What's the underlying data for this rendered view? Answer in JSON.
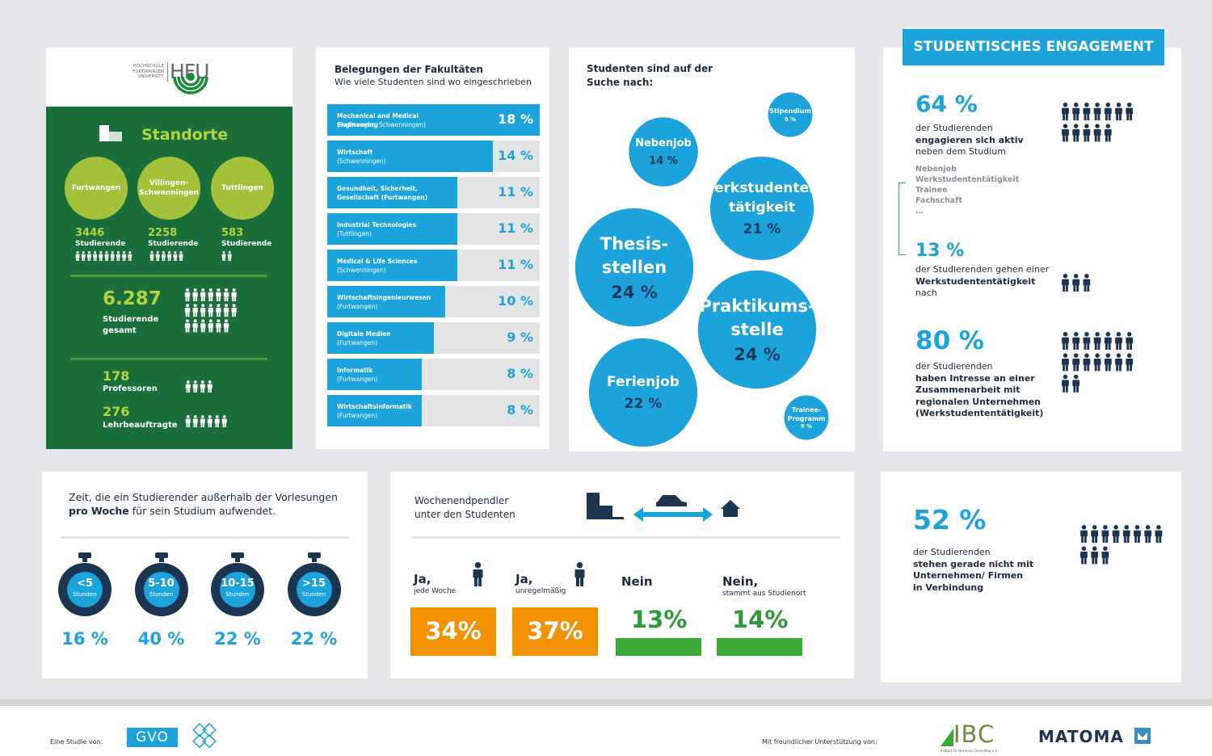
{
  "logo": {
    "small": [
      "HOCHSCHULE",
      "FURTWANGEN",
      "UNIVERSITY"
    ],
    "brand": "HFU"
  },
  "standorte": {
    "title": "Standorte",
    "sites": [
      {
        "name": "Furtwangen",
        "count": 3446,
        "label": "Studierende"
      },
      {
        "name": "Villingen-Schwenningen",
        "count": 2258,
        "label": "Studierende"
      },
      {
        "name": "Tuttlingen",
        "count": 583,
        "label": "Studierende"
      }
    ],
    "total": {
      "value": "6.287",
      "label": "Studierende gesamt"
    },
    "professors": {
      "value": 178,
      "label": "Professoren"
    },
    "lecturers": {
      "value": 276,
      "label": "Lehrbeauftragte"
    }
  },
  "faculties": {
    "title": "Belegungen der Fakultäten",
    "subtitle": "Wie viele Studenten sind wo eingeschrieben",
    "items": [
      {
        "name": "Mechanical and Medical Engineering",
        "location": "(Furtwangen, Schwenningen)",
        "value": 18,
        "label": "18 %"
      },
      {
        "name": "Wirtschaft",
        "location": "(Schwenningen)",
        "value": 14,
        "label": "14 %"
      },
      {
        "name": "Gesundheit, Sicherheit, Gesellschaft (Furtwangen)",
        "value": 11,
        "label": "11 %"
      },
      {
        "name": "Industrial Technologies",
        "location": "(Tuttlingen)",
        "value": 11,
        "label": "11 %"
      },
      {
        "name": "Medical & Life Sciences",
        "location": "(Schwenningen)",
        "value": 11,
        "label": "11 %"
      },
      {
        "name": "Wirtschaftsingenieurwesen",
        "location": "(Furtwangen)",
        "value": 10,
        "label": "10 %"
      },
      {
        "name": "Digitale Medien",
        "location": "(Furtwangen)",
        "value": 9,
        "label": "9 %"
      },
      {
        "name": "Informatik",
        "location": "(Furtwangen)",
        "value": 8,
        "label": "8 %"
      },
      {
        "name": "Wirtschaftsinformatik",
        "location": "(Furtwangen)",
        "value": 8,
        "label": "8 %"
      }
    ]
  },
  "search": {
    "title": "Studenten sind auf der\nSuche nach:",
    "items": [
      {
        "name": "Stipendium",
        "value": 9,
        "label": "9 %"
      },
      {
        "name": "Nebenjob",
        "value": 14,
        "label": "14 %"
      },
      {
        "name": "Werkstudenten-\ntätigkeit",
        "value": 21,
        "label": "21 %"
      },
      {
        "name": "Thesis-\nstellen",
        "value": 24,
        "label": "24 %"
      },
      {
        "name": "Praktikums-\nstelle",
        "value": 24,
        "label": "24 %"
      },
      {
        "name": "Ferienjob",
        "value": 22,
        "label": "22 %"
      },
      {
        "name": "Trainee-\nProgramm",
        "value": 9,
        "label": "9 %"
      }
    ]
  },
  "engagement": {
    "title": "STUDENTISCHES ENGAGEMENT",
    "stats": [
      {
        "value": "64 %",
        "lines": [
          {
            "text": "der Studierenden",
            "bold": false
          },
          {
            "text": "engagieren sich aktiv",
            "bold": true
          },
          {
            "text": "neben dem Studium",
            "bold": false
          }
        ]
      },
      {
        "value": "13 %",
        "lines": [
          {
            "text": "der Studierenden gehen einer",
            "bold": false
          },
          {
            "text": "Werkstudententätigkeit",
            "bold": true
          },
          {
            "text": "nach",
            "bold": false
          }
        ]
      },
      {
        "value": "80 %",
        "lines": [
          {
            "text": "der Studierenden",
            "bold": false
          },
          {
            "text": "haben Intresse an einer",
            "bold": true
          },
          {
            "text": "Zusammenarbeit mit",
            "bold": true
          },
          {
            "text": "regionalen Unternehmen",
            "bold": true
          },
          {
            "text": "(Werkstudententätigkeit)",
            "bold": true
          }
        ]
      }
    ],
    "list": [
      "Nebenjob",
      "Werkstudententätigkeit",
      "Trainee",
      "Fachschaft",
      "…"
    ]
  },
  "time": {
    "title": [
      {
        "text": "Zeit, die ein Studierender außerhalb der Vorlesungen ",
        "bold": false
      },
      {
        "text": "pro Woche",
        "bold": true
      },
      {
        "text": " für sein Studium aufwendet.",
        "bold": false
      }
    ],
    "items": [
      {
        "range": "<5",
        "unit": "Stunden",
        "value": "16 %"
      },
      {
        "range": "5-10",
        "unit": "Stunden",
        "value": "40 %"
      },
      {
        "range": "10-15",
        "unit": "Stunden",
        "value": "22 %"
      },
      {
        "range": ">15",
        "unit": "Stunden",
        "value": "22 %"
      }
    ]
  },
  "commuters": {
    "title": "Wochenendpendler\nunter den Studenten",
    "items": [
      {
        "answer": "Ja,",
        "detail": "jede Woche",
        "value": "34%"
      },
      {
        "answer": "Ja,",
        "detail": "unregelmäßig",
        "value": "37%"
      },
      {
        "answer": "Nein",
        "value": "13%"
      },
      {
        "answer": "Nein,",
        "detail": "stammt aus Studienort",
        "value": "14%"
      }
    ]
  },
  "contact": {
    "value": "52 %",
    "lines": [
      {
        "text": "der Studierenden",
        "bold": false
      },
      {
        "text": "stehen gerade nicht mit",
        "bold": true
      },
      {
        "text": "Unternehmen/ Firmen",
        "bold": true
      },
      {
        "text": "in Verbindung",
        "bold": true
      }
    ]
  },
  "footer": {
    "study_by": "Eine Studie von:",
    "gvo": "GVO",
    "support": "Mit freundlicher Unterstützung von:",
    "ibc": "IBC",
    "ibc_sub": "Institut für Business Consulting e.V.",
    "matoma": "MATOMA"
  }
}
